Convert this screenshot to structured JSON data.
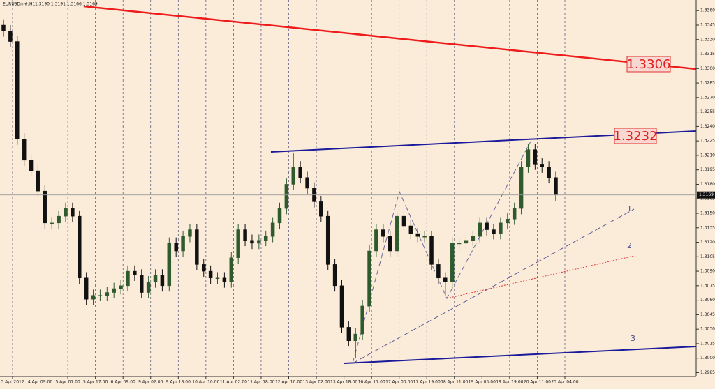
{
  "chart_data": {
    "type": "candlestick",
    "title": "EURUSDm#,H1",
    "subtitle": "1.3190 1.3191 1.3166 1.3169",
    "categories": [
      "3 Apr 2012",
      "4 Apr 09:00",
      "5 Apr 01:00",
      "5 Apr 17:00",
      "6 Apr 09:00",
      "9 Apr 02:00",
      "9 Apr 18:00",
      "10 Apr 10:00",
      "11 Apr 02:00",
      "11 Apr 18:00",
      "12 Apr 10:00",
      "13 Apr 02:00",
      "13 Apr 18:00",
      "16 Apr 11:00",
      "17 Apr 03:00",
      "17 Apr 19:00",
      "18 Apr 11:00",
      "19 Apr 03:00",
      "19 Apr 19:00",
      "20 Apr 11:00",
      "23 Apr 04:00"
    ],
    "candles": {
      "open": [
        1.3345,
        1.3339,
        1.3328,
        1.3227,
        1.3205,
        1.3194,
        1.3173,
        1.314,
        1.314,
        1.3147,
        1.3155,
        1.3147,
        1.3083,
        1.3061,
        1.3065,
        1.3065,
        1.3068,
        1.3072,
        1.3075,
        1.309,
        1.3086,
        1.3068,
        1.3079,
        1.3086,
        1.3075,
        1.3119,
        1.3111,
        1.3126,
        1.3133,
        1.3097,
        1.309,
        1.3083,
        1.3083,
        1.3079,
        1.3104,
        1.3133,
        1.3122,
        1.3119,
        1.3122,
        1.3126,
        1.314,
        1.3155,
        1.318,
        1.3198,
        1.3187,
        1.3176,
        1.3162,
        1.3147,
        1.3097,
        1.3075,
        1.3032,
        1.3018,
        1.3025,
        1.3054,
        1.3111,
        1.3133,
        1.3126,
        1.3111,
        1.3147,
        1.3137,
        1.3129,
        1.3126,
        1.3126,
        1.3097,
        1.3083,
        1.3079,
        1.3119,
        1.3119,
        1.3122,
        1.3126,
        1.314,
        1.3133,
        1.3129,
        1.314,
        1.3144,
        1.3155,
        1.3198,
        1.3216,
        1.3201,
        1.3198,
        1.3187
      ],
      "high": [
        1.3351,
        1.3345,
        1.3334,
        1.3233,
        1.3211,
        1.32,
        1.3179,
        1.3146,
        1.3153,
        1.3161,
        1.3161,
        1.3153,
        1.3089,
        1.3071,
        1.3071,
        1.3074,
        1.3078,
        1.3081,
        1.3096,
        1.3096,
        1.3092,
        1.3085,
        1.3092,
        1.3092,
        1.3125,
        1.3125,
        1.3132,
        1.3139,
        1.3139,
        1.3103,
        1.3096,
        1.3089,
        1.3089,
        1.311,
        1.3139,
        1.3139,
        1.3128,
        1.3128,
        1.3132,
        1.3146,
        1.3161,
        1.3186,
        1.3212,
        1.3204,
        1.3193,
        1.3182,
        1.3168,
        1.3153,
        1.3103,
        1.3081,
        1.3038,
        1.3031,
        1.306,
        1.3117,
        1.3139,
        1.3139,
        1.3132,
        1.3153,
        1.3153,
        1.3143,
        1.3135,
        1.3132,
        1.3132,
        1.3103,
        1.3089,
        1.3125,
        1.3125,
        1.3128,
        1.3132,
        1.3146,
        1.3146,
        1.3139,
        1.3146,
        1.315,
        1.3161,
        1.3204,
        1.3222,
        1.3222,
        1.3207,
        1.3204,
        1.3193
      ],
      "low": [
        1.3333,
        1.3322,
        1.3221,
        1.3199,
        1.3188,
        1.3167,
        1.3134,
        1.3134,
        1.3134,
        1.3141,
        1.3141,
        1.3077,
        1.3055,
        1.3055,
        1.3059,
        1.3059,
        1.3062,
        1.3066,
        1.3069,
        1.308,
        1.3062,
        1.3062,
        1.3073,
        1.3069,
        1.3069,
        1.3105,
        1.3105,
        1.312,
        1.3091,
        1.3084,
        1.3077,
        1.3077,
        1.3073,
        1.3073,
        1.3098,
        1.3116,
        1.3113,
        1.3113,
        1.3116,
        1.312,
        1.3134,
        1.3149,
        1.3174,
        1.3181,
        1.317,
        1.3156,
        1.3141,
        1.3091,
        1.3069,
        1.3026,
        1.3012,
        1.3,
        1.3019,
        1.3048,
        1.3105,
        1.312,
        1.3105,
        1.3105,
        1.3131,
        1.3123,
        1.312,
        1.312,
        1.3091,
        1.3077,
        1.3065,
        1.3073,
        1.3113,
        1.3113,
        1.3116,
        1.312,
        1.3127,
        1.3123,
        1.3123,
        1.3134,
        1.3138,
        1.3149,
        1.3192,
        1.3195,
        1.3192,
        1.3181,
        1.3163
      ],
      "close": [
        1.3339,
        1.3328,
        1.3227,
        1.3205,
        1.3194,
        1.3173,
        1.314,
        1.314,
        1.3147,
        1.3155,
        1.3147,
        1.3083,
        1.3061,
        1.3065,
        1.3065,
        1.3068,
        1.3072,
        1.3075,
        1.309,
        1.3086,
        1.3068,
        1.3079,
        1.3086,
        1.3075,
        1.3119,
        1.3111,
        1.3126,
        1.3133,
        1.3097,
        1.309,
        1.3083,
        1.3083,
        1.3079,
        1.3104,
        1.3133,
        1.3122,
        1.3119,
        1.3122,
        1.3126,
        1.314,
        1.3155,
        1.318,
        1.3198,
        1.3187,
        1.3176,
        1.3162,
        1.3147,
        1.3097,
        1.3075,
        1.3032,
        1.3018,
        1.3025,
        1.3054,
        1.3111,
        1.3133,
        1.3126,
        1.3111,
        1.3147,
        1.3137,
        1.3129,
        1.3126,
        1.3126,
        1.3097,
        1.3083,
        1.3079,
        1.3119,
        1.3119,
        1.3122,
        1.3126,
        1.314,
        1.3133,
        1.3129,
        1.314,
        1.3144,
        1.3155,
        1.3198,
        1.3216,
        1.3201,
        1.3198,
        1.3187,
        1.3169
      ]
    },
    "up_color": "#2e5a2e",
    "down_color": "#111111",
    "current_price": {
      "value": 1.3169,
      "label": "1.3169"
    },
    "ylim": [
      1.2981,
      1.3371
    ],
    "yticks": [
      {
        "value": 1.336,
        "label": "1.3360"
      },
      1.3345,
      {
        "value": 1.333,
        "label": "1.3330"
      },
      1.3315,
      {
        "value": 1.33,
        "label": "1.3300"
      },
      1.3285,
      {
        "value": 1.327,
        "label": "1.3270"
      },
      1.3255,
      {
        "value": 1.324,
        "label": "1.3240"
      },
      1.3225,
      {
        "value": 1.321,
        "label": "1.3210"
      },
      1.3195,
      {
        "value": 1.318,
        "label": "1.3180"
      },
      1.3165,
      {
        "value": 1.315,
        "label": "1.3150"
      },
      1.3135,
      {
        "value": 1.312,
        "label": "1.3120"
      },
      1.3105,
      {
        "value": 1.309,
        "label": "1.3090"
      },
      1.3075,
      {
        "value": 1.306,
        "label": "1.3060"
      },
      1.3045,
      {
        "value": 1.303,
        "label": "1.3030"
      },
      1.3015,
      {
        "value": 1.3,
        "label": "1.3000"
      },
      1.2985
    ],
    "grid": true,
    "annotations": [
      "1.3306",
      "1.3232",
      "1",
      "2",
      "3"
    ]
  }
}
